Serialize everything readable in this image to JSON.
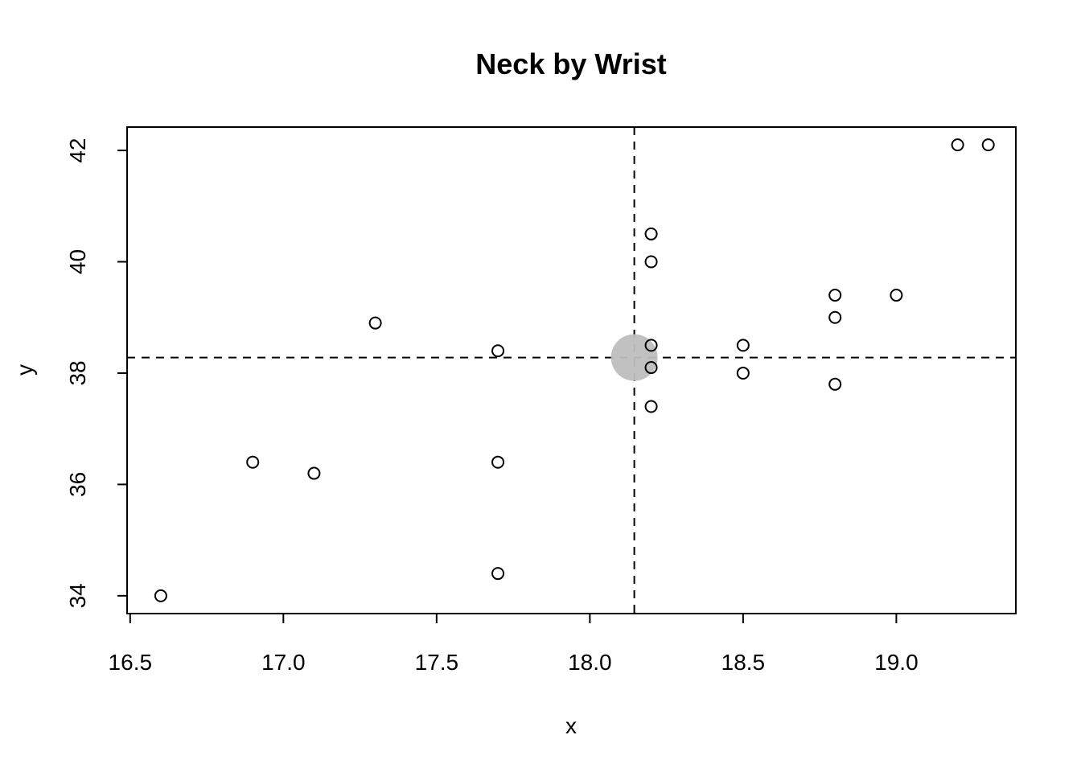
{
  "chart_data": {
    "type": "scatter",
    "title": "Neck by Wrist",
    "xlabel": "x",
    "ylabel": "y",
    "xlim": [
      16.49,
      19.39
    ],
    "ylim": [
      33.68,
      42.42
    ],
    "x_ticks": [
      "16.5",
      "17.0",
      "17.5",
      "18.0",
      "18.5",
      "19.0"
    ],
    "y_ticks": [
      "34",
      "36",
      "38",
      "40",
      "42"
    ],
    "points": [
      {
        "x": 16.6,
        "y": 34.0
      },
      {
        "x": 16.9,
        "y": 36.4
      },
      {
        "x": 17.1,
        "y": 36.2
      },
      {
        "x": 17.3,
        "y": 38.9
      },
      {
        "x": 17.7,
        "y": 38.4
      },
      {
        "x": 17.7,
        "y": 36.4
      },
      {
        "x": 17.7,
        "y": 34.4
      },
      {
        "x": 18.2,
        "y": 40.5
      },
      {
        "x": 18.2,
        "y": 40.0
      },
      {
        "x": 18.2,
        "y": 38.5
      },
      {
        "x": 18.2,
        "y": 38.1
      },
      {
        "x": 18.2,
        "y": 37.4
      },
      {
        "x": 18.5,
        "y": 38.5
      },
      {
        "x": 18.5,
        "y": 38.0
      },
      {
        "x": 18.8,
        "y": 39.4
      },
      {
        "x": 18.8,
        "y": 39.0
      },
      {
        "x": 18.8,
        "y": 37.8
      },
      {
        "x": 19.0,
        "y": 39.4
      },
      {
        "x": 19.2,
        "y": 42.1
      },
      {
        "x": 19.3,
        "y": 42.1
      }
    ],
    "mean_point": {
      "x": 18.145,
      "y": 38.28
    },
    "reference_lines": {
      "vertical_x": 18.145,
      "horizontal_y": 38.28,
      "style": "dashed"
    },
    "grid": false,
    "colors": {
      "points": "#000000",
      "mean_marker": "#bebebe",
      "lines": "#000000"
    }
  }
}
